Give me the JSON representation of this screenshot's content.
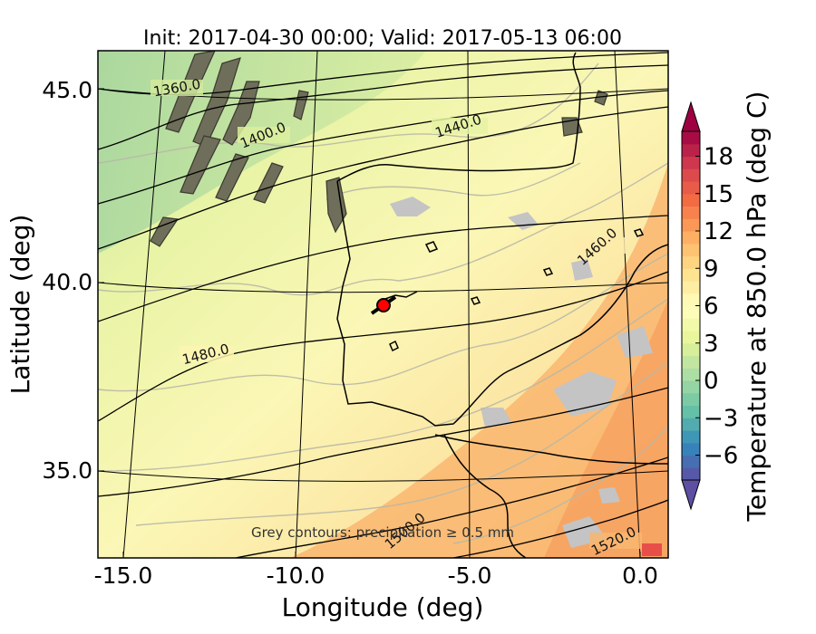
{
  "title": "Init: 2017-04-30 00:00; Valid: 2017-05-13 06:00",
  "chart_data": {
    "type": "heatmap",
    "title": "Init: 2017-04-30 00:00; Valid: 2017-05-13 06:00",
    "xlabel": "Longitude (deg)",
    "ylabel": "Latitude (deg)",
    "xlim": [
      -16.0,
      0.0
    ],
    "ylim": [
      32.7,
      46.0
    ],
    "x_ticks": [
      "-15.0",
      "-10.0",
      "-5.0",
      "0.0"
    ],
    "y_ticks": [
      "35.0",
      "40.0",
      "45.0"
    ],
    "colorbar": {
      "label": "Temperature at 850.0 hPa (deg C)",
      "min": -8,
      "max": 20,
      "ticks": [
        "−6",
        "−3",
        "0",
        "3",
        "6",
        "9",
        "12",
        "15",
        "18"
      ],
      "tick_values": [
        -6,
        -3,
        0,
        3,
        6,
        9,
        12,
        15,
        18
      ],
      "colormap": "Spectral_r",
      "extend": "both"
    },
    "contour_labels": [
      "1360.0",
      "1400.0",
      "1440.0",
      "1460.0",
      "1480.0",
      "1500.0",
      "1520.0"
    ],
    "marker": {
      "lon": -7.7,
      "lat": 39.3,
      "color": "#ff0000"
    },
    "annotation": "Grey contours: precipitation ≥ 0.5 mm"
  }
}
